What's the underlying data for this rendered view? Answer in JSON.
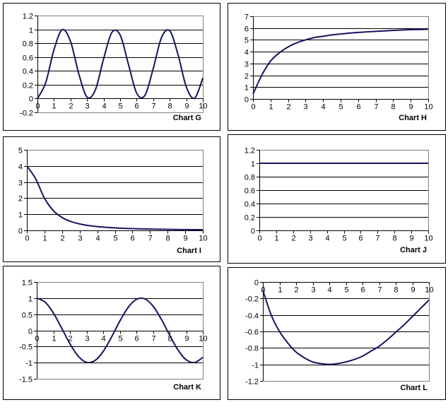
{
  "line_color": "#14145f",
  "chart_data": [
    {
      "type": "line",
      "title": "Chart G",
      "ylim": [
        -0.2,
        1.2
      ],
      "y_ticks": [
        "-0.2",
        "0",
        "0.2",
        "0.4",
        "0.6",
        "0.8",
        "1",
        "1.2"
      ],
      "x_ticks": [
        "0",
        "1",
        "2",
        "3",
        "4",
        "5",
        "6",
        "7",
        "8",
        "9",
        "10"
      ],
      "x": [
        0,
        0.5,
        1,
        1.5,
        2,
        2.5,
        3,
        3.5,
        4,
        4.5,
        5,
        5.5,
        6,
        6.5,
        7,
        7.5,
        8,
        8.5,
        9,
        9.5,
        10
      ],
      "y": [
        0,
        0.23,
        0.708,
        0.995,
        0.827,
        0.358,
        0.02,
        0.123,
        0.573,
        0.955,
        0.92,
        0.498,
        0.078,
        0.046,
        0.432,
        0.88,
        0.979,
        0.637,
        0.17,
        0.005,
        0.296
      ],
      "grid": true
    },
    {
      "type": "line",
      "title": "Chart H",
      "ylim": [
        0,
        7
      ],
      "y_ticks": [
        "0",
        "1",
        "2",
        "3",
        "4",
        "5",
        "6",
        "7"
      ],
      "x_ticks": [
        "0",
        "1",
        "2",
        "3",
        "4",
        "5",
        "6",
        "7",
        "8",
        "9",
        "10"
      ],
      "x": [
        0,
        0.5,
        1,
        1.5,
        2,
        2.5,
        3,
        3.5,
        4,
        4.5,
        5,
        5.5,
        6,
        6.5,
        7,
        7.5,
        8,
        8.5,
        9,
        9.5,
        10
      ],
      "y": [
        0.4,
        2.0,
        3.2,
        3.9,
        4.4,
        4.75,
        5.0,
        5.2,
        5.3,
        5.42,
        5.5,
        5.57,
        5.63,
        5.68,
        5.72,
        5.76,
        5.8,
        5.83,
        5.87,
        5.88,
        5.9
      ],
      "grid": true
    },
    {
      "type": "line",
      "title": "Chart I",
      "ylim": [
        0,
        5
      ],
      "y_ticks": [
        "0",
        "1",
        "2",
        "3",
        "4",
        "5"
      ],
      "x_ticks": [
        "0",
        "1",
        "2",
        "3",
        "4",
        "5",
        "6",
        "7",
        "8",
        "9",
        "10"
      ],
      "x": [
        0,
        0.5,
        1,
        1.5,
        2,
        2.5,
        3,
        3.5,
        4,
        4.5,
        5,
        5.5,
        6,
        6.5,
        7,
        7.5,
        8,
        8.5,
        9,
        9.5,
        10
      ],
      "y": [
        4,
        3.2,
        2.0,
        1.23,
        0.8,
        0.55,
        0.4,
        0.3,
        0.235,
        0.19,
        0.154,
        0.128,
        0.108,
        0.092,
        0.08,
        0.07,
        0.062,
        0.054,
        0.048,
        0.043,
        0.04
      ],
      "grid": true
    },
    {
      "type": "line",
      "title": "Chart J",
      "ylim": [
        0,
        1.2
      ],
      "y_ticks": [
        "0",
        "0.2",
        "0.4",
        "0.6",
        "0.8",
        "1",
        "1.2"
      ],
      "x_ticks": [
        "0",
        "1",
        "2",
        "3",
        "4",
        "5",
        "6",
        "7",
        "8",
        "9",
        "10"
      ],
      "x": [
        0,
        0.5,
        1,
        1.5,
        2,
        2.5,
        3,
        3.5,
        4,
        4.5,
        5,
        5.5,
        6,
        6.5,
        7,
        7.5,
        8,
        8.5,
        9,
        9.5,
        10
      ],
      "y": [
        1,
        1,
        1,
        1,
        1,
        1,
        1,
        1,
        1,
        1,
        1,
        1,
        1,
        1,
        1,
        1,
        1,
        1,
        1,
        1,
        1
      ],
      "grid": true
    },
    {
      "type": "line",
      "title": "Chart K",
      "ylim": [
        -1.5,
        1.5
      ],
      "y_ticks": [
        "-1.5",
        "-1",
        "-0.5",
        "0",
        "0.5",
        "1",
        "1.5"
      ],
      "x_ticks": [
        "0",
        "1",
        "2",
        "3",
        "4",
        "5",
        "6",
        "7",
        "8",
        "9",
        "10"
      ],
      "x": [
        0,
        0.5,
        1,
        1.5,
        2,
        2.5,
        3,
        3.5,
        4,
        4.5,
        5,
        5.5,
        6,
        6.5,
        7,
        7.5,
        8,
        8.5,
        9,
        9.5,
        10
      ],
      "y": [
        1,
        0.878,
        0.54,
        0.071,
        -0.416,
        -0.801,
        -0.99,
        -0.936,
        -0.654,
        -0.211,
        0.284,
        0.709,
        0.96,
        0.977,
        0.754,
        0.347,
        -0.146,
        -0.602,
        -0.911,
        -0.997,
        -0.839
      ],
      "grid": true
    },
    {
      "type": "line",
      "title": "Chart L",
      "ylim": [
        -1.2,
        0
      ],
      "y_ticks": [
        "-1.2",
        "-1",
        "-0.8",
        "-0.6",
        "-0.4",
        "-0.2",
        "0"
      ],
      "x_ticks": [
        "0",
        "1",
        "2",
        "3",
        "4",
        "5",
        "6",
        "7",
        "8",
        "9",
        "10"
      ],
      "x": [
        0,
        0.5,
        1,
        1.5,
        2,
        2.5,
        3,
        3.5,
        4,
        4.5,
        5,
        5.5,
        6,
        6.5,
        7,
        7.5,
        8,
        8.5,
        9,
        9.5,
        10
      ],
      "y": [
        -0.1,
        -0.4,
        -0.6,
        -0.74,
        -0.85,
        -0.92,
        -0.97,
        -0.99,
        -1.0,
        -0.99,
        -0.97,
        -0.94,
        -0.9,
        -0.84,
        -0.78,
        -0.7,
        -0.61,
        -0.52,
        -0.42,
        -0.32,
        -0.22
      ],
      "grid": true
    }
  ]
}
